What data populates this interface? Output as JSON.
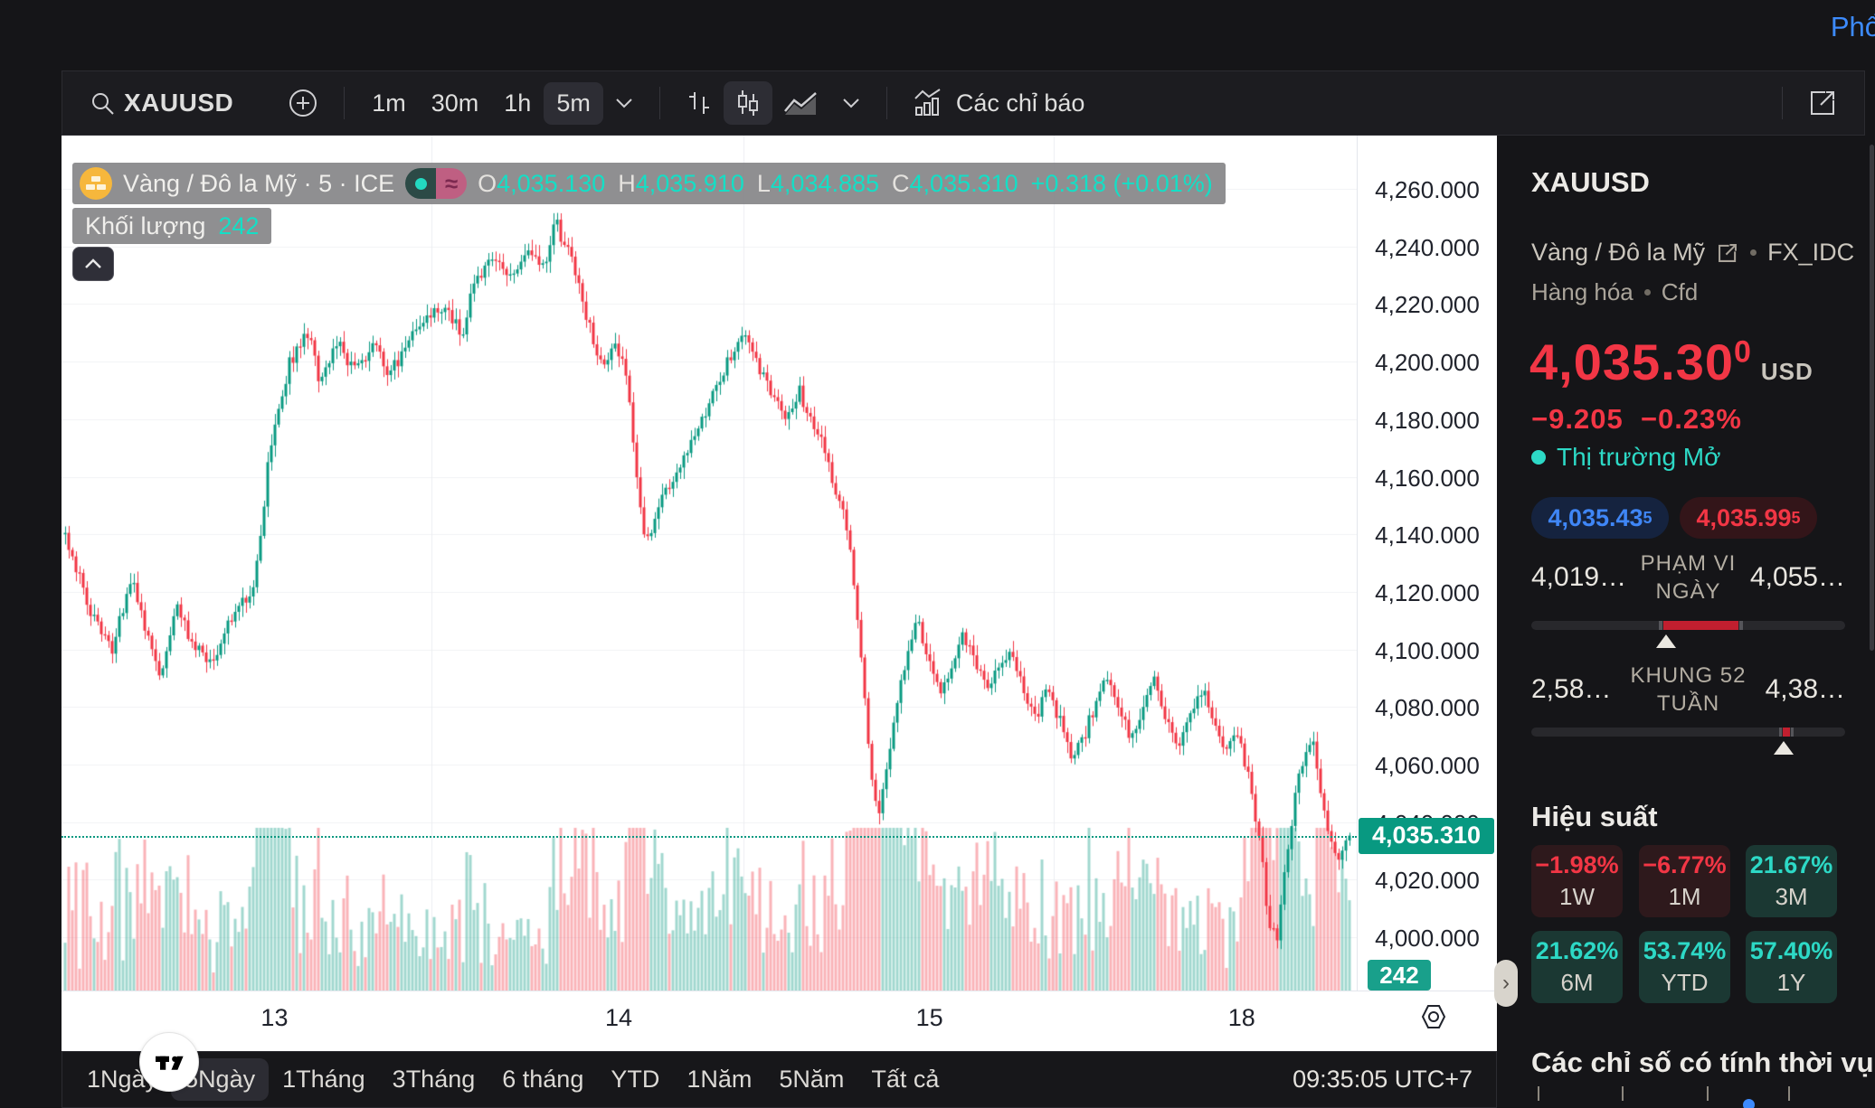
{
  "page": {
    "top_right_link": "Phổ"
  },
  "toolbar": {
    "symbol": "XAUUSD",
    "timeframes": [
      "1m",
      "30m",
      "1h",
      "5m"
    ],
    "selected_timeframe": "5m",
    "indicators_label": "Các chỉ báo"
  },
  "legend": {
    "title": "Vàng / Đô la Mỹ · 5 · ICE",
    "ohlc": [
      {
        "k": "O",
        "v": "4,035.130"
      },
      {
        "k": "H",
        "v": "4,035.910"
      },
      {
        "k": "L",
        "v": "4,034.885"
      },
      {
        "k": "C",
        "v": "4,035.310"
      }
    ],
    "change": "+0.318 (+0.01%)",
    "volume_label": "Khối lượng",
    "volume_value": "242"
  },
  "chart_data": {
    "type": "candlestick",
    "symbol": "XAUUSD",
    "interval": "5m",
    "title": "Vàng / Đô la Mỹ · 5 · ICE",
    "up_color": "#089981",
    "down_color": "#F23645",
    "y_ticks": [
      "4,260.000",
      "4,240.000",
      "4,220.000",
      "4,200.000",
      "4,180.000",
      "4,160.000",
      "4,140.000",
      "4,120.000",
      "4,100.000",
      "4,080.000",
      "4,060.000",
      "4,040.000",
      "4,020.000",
      "4,000.000"
    ],
    "x_labels": [
      {
        "label": "13",
        "t": 0.163
      },
      {
        "label": "14",
        "t": 0.431
      },
      {
        "label": "15",
        "t": 0.673
      },
      {
        "label": "18",
        "t": 0.916
      }
    ],
    "session_lines": [
      0.285,
      0.528,
      0.77
    ],
    "ylim": [
      3990,
      4262
    ],
    "current_price": 4035.31,
    "current_price_label": "4,035.310",
    "last_volume_label": "242",
    "ohlc": {
      "open": 4035.13,
      "high": 4035.91,
      "low": 4034.885,
      "close": 4035.31,
      "change": "+0.318 (+0.01%)"
    },
    "price_path": [
      [
        0,
        4140
      ],
      [
        0.018,
        4115
      ],
      [
        0.037,
        4100
      ],
      [
        0.051,
        4125
      ],
      [
        0.06,
        4110
      ],
      [
        0.074,
        4092
      ],
      [
        0.088,
        4115
      ],
      [
        0.101,
        4100
      ],
      [
        0.115,
        4095
      ],
      [
        0.129,
        4110
      ],
      [
        0.147,
        4122
      ],
      [
        0.161,
        4175
      ],
      [
        0.175,
        4200
      ],
      [
        0.189,
        4210
      ],
      [
        0.198,
        4194
      ],
      [
        0.212,
        4206
      ],
      [
        0.226,
        4196
      ],
      [
        0.24,
        4206
      ],
      [
        0.253,
        4196
      ],
      [
        0.267,
        4206
      ],
      [
        0.281,
        4215
      ],
      [
        0.295,
        4220
      ],
      [
        0.309,
        4210
      ],
      [
        0.318,
        4226
      ],
      [
        0.332,
        4236
      ],
      [
        0.346,
        4228
      ],
      [
        0.359,
        4240
      ],
      [
        0.373,
        4234
      ],
      [
        0.382,
        4248
      ],
      [
        0.392,
        4238
      ],
      [
        0.401,
        4224
      ],
      [
        0.41,
        4210
      ],
      [
        0.419,
        4198
      ],
      [
        0.429,
        4206
      ],
      [
        0.438,
        4196
      ],
      [
        0.445,
        4158
      ],
      [
        0.452,
        4135
      ],
      [
        0.461,
        4150
      ],
      [
        0.475,
        4162
      ],
      [
        0.489,
        4172
      ],
      [
        0.502,
        4186
      ],
      [
        0.516,
        4200
      ],
      [
        0.525,
        4210
      ],
      [
        0.535,
        4204
      ],
      [
        0.544,
        4194
      ],
      [
        0.553,
        4186
      ],
      [
        0.562,
        4180
      ],
      [
        0.571,
        4190
      ],
      [
        0.581,
        4180
      ],
      [
        0.59,
        4170
      ],
      [
        0.599,
        4155
      ],
      [
        0.608,
        4144
      ],
      [
        0.613,
        4128
      ],
      [
        0.62,
        4098
      ],
      [
        0.627,
        4058
      ],
      [
        0.633,
        4042
      ],
      [
        0.639,
        4056
      ],
      [
        0.645,
        4076
      ],
      [
        0.654,
        4096
      ],
      [
        0.664,
        4110
      ],
      [
        0.673,
        4094
      ],
      [
        0.682,
        4086
      ],
      [
        0.691,
        4096
      ],
      [
        0.7,
        4105
      ],
      [
        0.71,
        4094
      ],
      [
        0.719,
        4086
      ],
      [
        0.728,
        4096
      ],
      [
        0.737,
        4100
      ],
      [
        0.746,
        4086
      ],
      [
        0.756,
        4076
      ],
      [
        0.765,
        4086
      ],
      [
        0.774,
        4076
      ],
      [
        0.783,
        4062
      ],
      [
        0.793,
        4070
      ],
      [
        0.802,
        4080
      ],
      [
        0.811,
        4090
      ],
      [
        0.82,
        4080
      ],
      [
        0.829,
        4070
      ],
      [
        0.839,
        4080
      ],
      [
        0.848,
        4090
      ],
      [
        0.857,
        4076
      ],
      [
        0.866,
        4066
      ],
      [
        0.876,
        4076
      ],
      [
        0.885,
        4086
      ],
      [
        0.894,
        4076
      ],
      [
        0.903,
        4066
      ],
      [
        0.912,
        4070
      ],
      [
        0.922,
        4056
      ],
      [
        0.931,
        4030
      ],
      [
        0.937,
        4006
      ],
      [
        0.943,
        3998
      ],
      [
        0.949,
        4020
      ],
      [
        0.956,
        4044
      ],
      [
        0.963,
        4060
      ],
      [
        0.971,
        4068
      ],
      [
        0.977,
        4050
      ],
      [
        0.983,
        4038
      ],
      [
        0.991,
        4028
      ],
      [
        1,
        4035.3
      ]
    ],
    "volume_spikes": [
      [
        0.16,
        120
      ],
      [
        0.4,
        70
      ],
      [
        0.452,
        95
      ],
      [
        0.52,
        70
      ],
      [
        0.63,
        140
      ],
      [
        0.665,
        90
      ],
      [
        0.72,
        70
      ],
      [
        0.83,
        75
      ],
      [
        0.937,
        130
      ],
      [
        0.985,
        85
      ]
    ]
  },
  "bottom_bar": {
    "ranges": [
      "1Ngày",
      "5Ngày",
      "1Tháng",
      "3Tháng",
      "6 tháng",
      "YTD",
      "1Năm",
      "5Năm",
      "Tất cả"
    ],
    "selected": "5Ngày",
    "clock": "09:35:05 UTC+7"
  },
  "side_panel": {
    "ticker": "XAUUSD",
    "name": "Vàng / Đô la Mỹ",
    "exchange": "FX_IDC",
    "type1": "Hàng hóa",
    "type2": "Cfd",
    "price": {
      "value": "4,035.30",
      "sup": "0",
      "currency": "USD",
      "change": "−9.205",
      "change_pct": "−0.23%"
    },
    "market_status": "Thị trường Mở",
    "bid": {
      "value": "4,035.43",
      "sup": "5"
    },
    "ask": {
      "value": "4,035.99",
      "sup": "5"
    },
    "day_range": {
      "low": "4,019…",
      "label1": "PHẠM VI",
      "label2": "NGÀY",
      "high": "4,055…",
      "bar_start": 0.42,
      "bar_end": 0.66,
      "pointer": 0.428,
      "bar_color": "#c11f2f"
    },
    "week52_range": {
      "low": "2,58…",
      "label1": "KHUNG 52",
      "label2": "TUẦN",
      "high": "4,38…",
      "tick": 0.8,
      "pointer": 0.805,
      "tick_color": "#c11f2f"
    },
    "performance_title": "Hiệu suất",
    "performance": [
      {
        "value": "−1.98%",
        "label": "1W",
        "type": "down"
      },
      {
        "value": "−6.77%",
        "label": "1M",
        "type": "down"
      },
      {
        "value": "21.67%",
        "label": "3M",
        "type": "up"
      },
      {
        "value": "21.62%",
        "label": "6M",
        "type": "up"
      },
      {
        "value": "53.74%",
        "label": "YTD",
        "type": "up"
      },
      {
        "value": "57.40%",
        "label": "1Y",
        "type": "up"
      }
    ],
    "seasonal_title": "Các chỉ số có tính thời vụ"
  }
}
